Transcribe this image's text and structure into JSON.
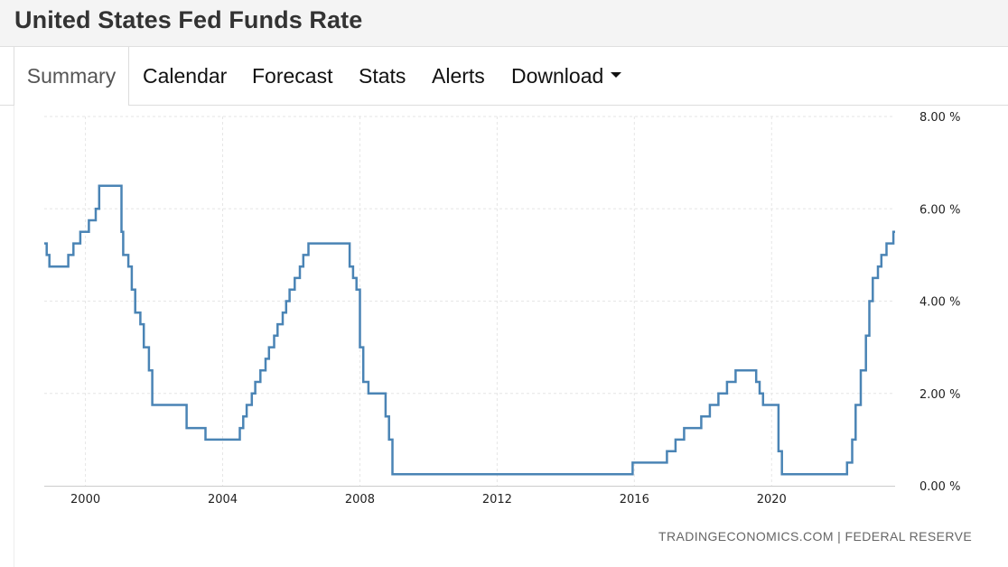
{
  "header": {
    "title": "United States Fed Funds Rate"
  },
  "tabs": [
    {
      "label": "Summary",
      "active": true
    },
    {
      "label": "Calendar",
      "active": false
    },
    {
      "label": "Forecast",
      "active": false
    },
    {
      "label": "Stats",
      "active": false
    },
    {
      "label": "Alerts",
      "active": false
    },
    {
      "label": "Download",
      "active": false,
      "dropdown": true
    }
  ],
  "source": "TRADINGECONOMICS.COM | FEDERAL RESERVE",
  "chart_data": {
    "type": "line",
    "step": true,
    "title": "",
    "xlabel": "",
    "ylabel": "",
    "x_ticks": [
      "2000",
      "2004",
      "2008",
      "2012",
      "2016",
      "2020"
    ],
    "y_ticks": [
      "0.00 %",
      "2.00 %",
      "4.00 %",
      "6.00 %",
      "8.00 %"
    ],
    "xlim": [
      1998.8,
      2023.6
    ],
    "ylim": [
      0,
      8
    ],
    "grid": true,
    "line_color": "#4a84b5",
    "series": [
      {
        "x": [
          1998.8,
          1998.87,
          1998.95,
          1999.5,
          1999.65,
          1999.85,
          2000.1,
          2000.3,
          2000.4,
          2001.05,
          2001.1,
          2001.25,
          2001.35,
          2001.45,
          2001.6,
          2001.7,
          2001.85,
          2001.95,
          2002.95,
          2003.5,
          2004.5,
          2004.6,
          2004.7,
          2004.85,
          2004.95,
          2005.1,
          2005.25,
          2005.35,
          2005.5,
          2005.6,
          2005.75,
          2005.85,
          2005.95,
          2006.1,
          2006.25,
          2006.35,
          2006.5,
          2007.7,
          2007.8,
          2007.9,
          2008.0,
          2008.1,
          2008.25,
          2008.75,
          2008.85,
          2008.95,
          2015.95,
          2016.95,
          2017.2,
          2017.45,
          2017.95,
          2018.2,
          2018.45,
          2018.7,
          2018.95,
          2019.55,
          2019.65,
          2019.75,
          2020.2,
          2020.3,
          2022.2,
          2022.35,
          2022.45,
          2022.6,
          2022.75,
          2022.85,
          2022.95,
          2023.1,
          2023.2,
          2023.35,
          2023.55,
          2023.6
        ],
        "y": [
          5.25,
          5.0,
          4.75,
          5.0,
          5.25,
          5.5,
          5.75,
          6.0,
          6.5,
          5.5,
          5.0,
          4.75,
          4.25,
          3.75,
          3.5,
          3.0,
          2.5,
          1.75,
          1.25,
          1.0,
          1.25,
          1.5,
          1.75,
          2.0,
          2.25,
          2.5,
          2.75,
          3.0,
          3.25,
          3.5,
          3.75,
          4.0,
          4.25,
          4.5,
          4.75,
          5.0,
          5.25,
          4.75,
          4.5,
          4.25,
          3.0,
          2.25,
          2.0,
          1.5,
          1.0,
          0.25,
          0.5,
          0.75,
          1.0,
          1.25,
          1.5,
          1.75,
          2.0,
          2.25,
          2.5,
          2.25,
          2.0,
          1.75,
          0.75,
          0.25,
          0.5,
          1.0,
          1.75,
          2.5,
          3.25,
          4.0,
          4.5,
          4.75,
          5.0,
          5.25,
          5.5,
          5.5
        ]
      }
    ]
  }
}
